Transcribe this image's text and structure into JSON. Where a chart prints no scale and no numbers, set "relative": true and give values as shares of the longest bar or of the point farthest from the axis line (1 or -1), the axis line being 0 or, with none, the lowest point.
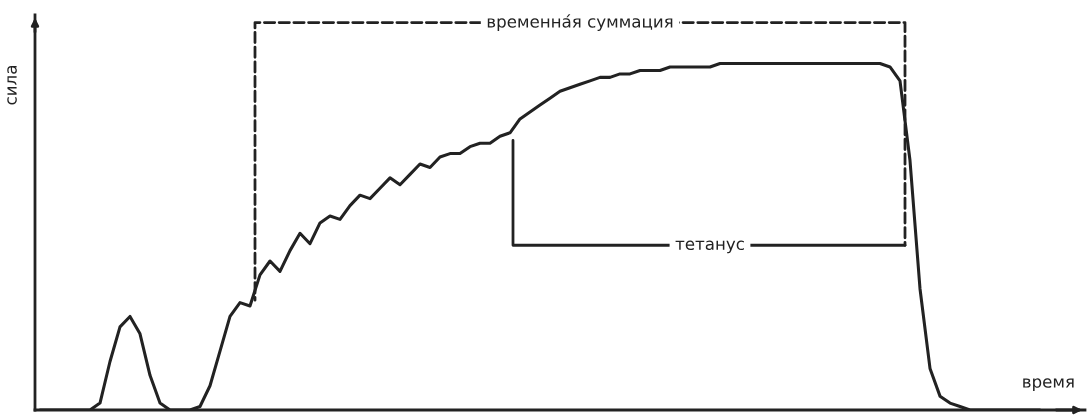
{
  "chart_data": {
    "type": "line",
    "relative": true,
    "xlabel": "время",
    "ylabel": "сила",
    "color": "#222222",
    "annotations": [
      "временна́я суммация",
      "тетанус"
    ],
    "categories": [
      null,
      null,
      null,
      null,
      null,
      null,
      null,
      null,
      null,
      null,
      null,
      null,
      null,
      null,
      null,
      null,
      null,
      null,
      null,
      null,
      null,
      null,
      null,
      null,
      null,
      null,
      null,
      null,
      null,
      null,
      null,
      null,
      null,
      null,
      null,
      null,
      null,
      null,
      null,
      null,
      null,
      null,
      null,
      null,
      null,
      null,
      null,
      null,
      null,
      null,
      null,
      null,
      null,
      null,
      null,
      null,
      null,
      null,
      null,
      null,
      null,
      null,
      null,
      null,
      null,
      null,
      null,
      null,
      null,
      null,
      null,
      null,
      null,
      null,
      null,
      null,
      null,
      null,
      null,
      null,
      null,
      null,
      null,
      null,
      null,
      null,
      null,
      null,
      null,
      null,
      null,
      null,
      null,
      null,
      null,
      null,
      null,
      null,
      null,
      null,
      null
    ],
    "values": [
      0,
      0,
      0,
      0,
      0,
      0,
      0.02,
      0.14,
      0.24,
      0.27,
      0.22,
      0.1,
      0.02,
      0,
      0,
      0,
      0.01,
      0.07,
      0.17,
      0.27,
      0.31,
      0.3,
      0.39,
      0.43,
      0.4,
      0.46,
      0.51,
      0.48,
      0.54,
      0.56,
      0.55,
      0.59,
      0.62,
      0.61,
      0.64,
      0.67,
      0.65,
      0.68,
      0.71,
      0.7,
      0.73,
      0.74,
      0.74,
      0.76,
      0.77,
      0.77,
      0.79,
      0.8,
      0.84,
      0.86,
      0.88,
      0.9,
      0.92,
      0.93,
      0.94,
      0.95,
      0.96,
      0.96,
      0.97,
      0.97,
      0.98,
      0.98,
      0.98,
      0.99,
      0.99,
      0.99,
      0.99,
      0.99,
      1,
      1,
      1,
      1,
      1,
      1,
      1,
      1,
      1,
      1,
      1,
      1,
      1,
      1,
      1,
      1,
      1,
      0.99,
      0.95,
      0.72,
      0.35,
      0.12,
      0.04,
      0.02,
      0.01,
      0,
      0,
      0,
      0,
      0,
      0,
      0,
      0
    ]
  }
}
